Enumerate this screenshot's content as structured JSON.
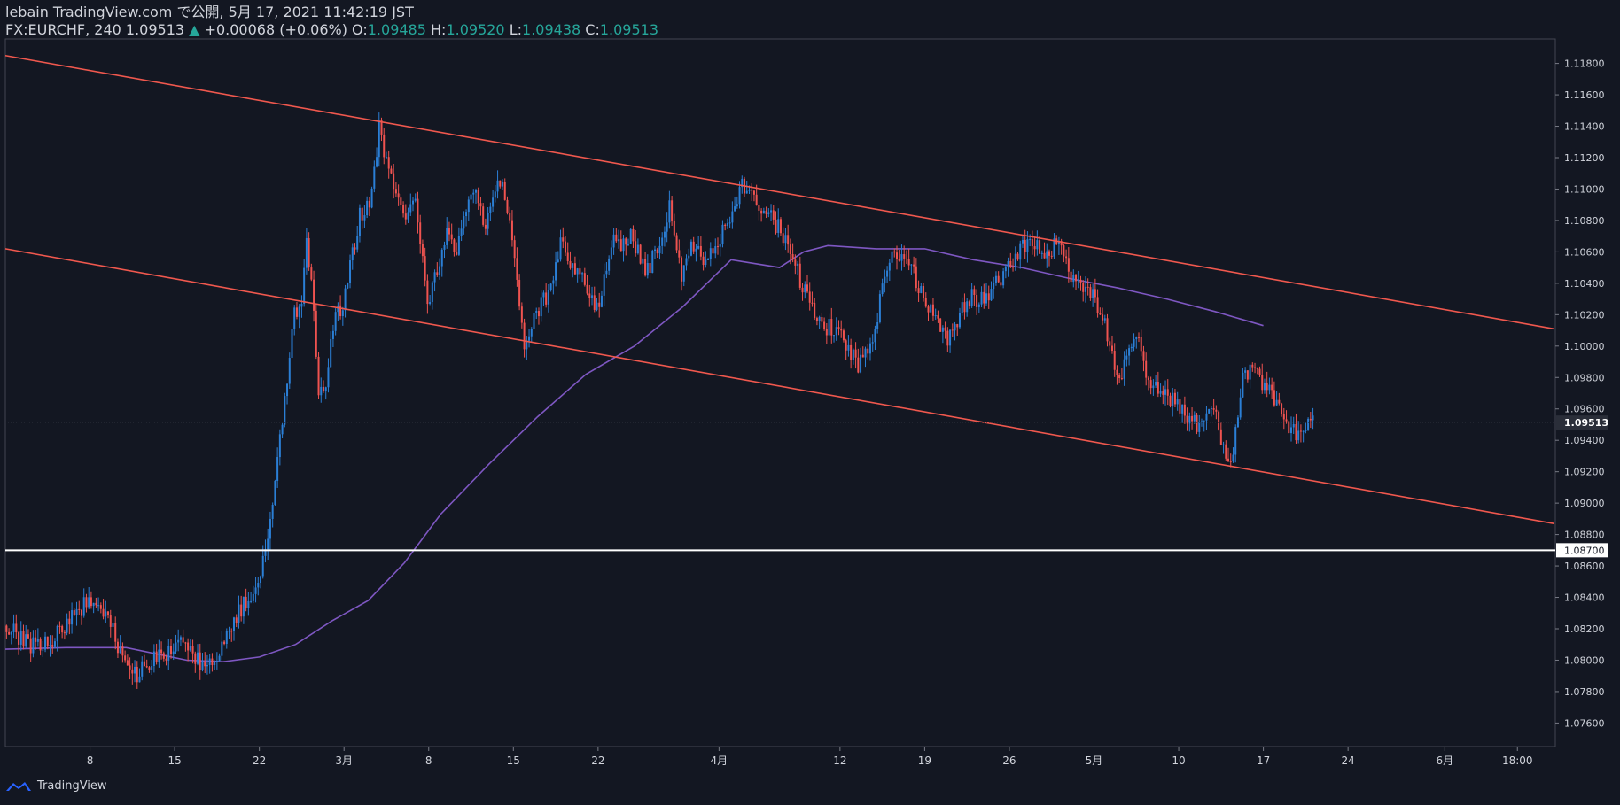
{
  "header": {
    "line1": "lebain TradingView.com で公開, 5月 17, 2021 11:42:19 JST",
    "symbol": "FX:EURCHF, 240",
    "last": "1.09513",
    "arrow": "▲",
    "change": "+0.00068 (+0.06%)",
    "o_label": "O:",
    "o": "1.09485",
    "h_label": "H:",
    "h": "1.09520",
    "l_label": "L:",
    "l": "1.09438",
    "c_label": "C:",
    "c": "1.09513"
  },
  "footer": {
    "brand": "TradingView"
  },
  "colors": {
    "background": "#131722",
    "up": "#2b7fd6",
    "down": "#ef5350",
    "trendline": "#f0584e",
    "moving_average": "#7e57c2",
    "level": "#ffffff",
    "axis_text": "#d1d4dc"
  },
  "chart_data": {
    "type": "candlestick",
    "symbol": "FX:EURCHF",
    "interval": "240",
    "yrange": [
      1.0745,
      1.1195
    ],
    "y_ticks": [
      "1.11800",
      "1.11600",
      "1.11400",
      "1.11200",
      "1.11000",
      "1.10800",
      "1.10600",
      "1.10400",
      "1.10200",
      "1.10000",
      "1.09800",
      "1.09600",
      "1.09400",
      "1.09200",
      "1.09000",
      "1.08800",
      "1.08600",
      "1.08400",
      "1.08200",
      "1.08000",
      "1.07800",
      "1.07600"
    ],
    "x_ticks": [
      {
        "label": "8",
        "day": 7
      },
      {
        "label": "15",
        "day": 14
      },
      {
        "label": "22",
        "day": 21
      },
      {
        "label": "3月",
        "day": 28
      },
      {
        "label": "8",
        "day": 35
      },
      {
        "label": "15",
        "day": 42
      },
      {
        "label": "22",
        "day": 49
      },
      {
        "label": "4月",
        "day": 59
      },
      {
        "label": "12",
        "day": 69
      },
      {
        "label": "19",
        "day": 76
      },
      {
        "label": "26",
        "day": 83
      },
      {
        "label": "5月",
        "day": 90
      },
      {
        "label": "10",
        "day": 97
      },
      {
        "label": "17",
        "day": 104
      },
      {
        "label": "24",
        "day": 111
      },
      {
        "label": "6月",
        "day": 119
      },
      {
        "label": "18:00",
        "day": 125
      }
    ],
    "last_price_label": "1.09513",
    "horizontal_level": {
      "price": 1.087,
      "label": "1.08700"
    },
    "trendlines": [
      {
        "name": "channel-upper",
        "from": [
          0,
          1.1185
        ],
        "to": [
          128,
          1.1011
        ]
      },
      {
        "name": "channel-lower",
        "from": [
          0,
          1.1062
        ],
        "to": [
          128,
          1.0887
        ]
      }
    ],
    "moving_average": [
      [
        0,
        1.0807
      ],
      [
        5,
        1.0808
      ],
      [
        10,
        1.0808
      ],
      [
        15,
        1.08
      ],
      [
        18,
        1.0799
      ],
      [
        21,
        1.0802
      ],
      [
        24,
        1.081
      ],
      [
        27,
        1.0825
      ],
      [
        30,
        1.0838
      ],
      [
        33,
        1.0862
      ],
      [
        36,
        1.0893
      ],
      [
        40,
        1.0925
      ],
      [
        44,
        1.0955
      ],
      [
        48,
        1.0982
      ],
      [
        52,
        1.1
      ],
      [
        56,
        1.1025
      ],
      [
        60,
        1.1055
      ],
      [
        64,
        1.105
      ],
      [
        66,
        1.106
      ],
      [
        68,
        1.1064
      ],
      [
        72,
        1.1062
      ],
      [
        76,
        1.1062
      ],
      [
        80,
        1.1055
      ],
      [
        84,
        1.105
      ],
      [
        88,
        1.1043
      ],
      [
        92,
        1.1037
      ],
      [
        96,
        1.103
      ],
      [
        100,
        1.1022
      ],
      [
        104,
        1.1013
      ]
    ],
    "price_path": [
      [
        0,
        1.0822
      ],
      [
        2,
        1.081
      ],
      [
        4,
        1.0812
      ],
      [
        6,
        1.0832
      ],
      [
        7.5,
        1.0838
      ],
      [
        9,
        1.0818
      ],
      [
        10.5,
        1.0788
      ],
      [
        12,
        1.0798
      ],
      [
        13.5,
        1.0805
      ],
      [
        15,
        1.0812
      ],
      [
        16.5,
        1.0793
      ],
      [
        18,
        1.0808
      ],
      [
        19.5,
        1.0832
      ],
      [
        21,
        1.085
      ],
      [
        21.5,
        1.0868
      ],
      [
        22,
        1.0888
      ],
      [
        22.5,
        1.092
      ],
      [
        23.3,
        1.0975
      ],
      [
        24,
        1.102
      ],
      [
        24.6,
        1.1028
      ],
      [
        25,
        1.107
      ],
      [
        25.6,
        1.102
      ],
      [
        26,
        1.0965
      ],
      [
        26.6,
        1.0978
      ],
      [
        27.2,
        1.1015
      ],
      [
        28,
        1.1025
      ],
      [
        28.6,
        1.105
      ],
      [
        29.4,
        1.1082
      ],
      [
        30.3,
        1.1095
      ],
      [
        31,
        1.1138
      ],
      [
        32,
        1.1105
      ],
      [
        33,
        1.1082
      ],
      [
        34,
        1.1095
      ],
      [
        35,
        1.103
      ],
      [
        35.6,
        1.1042
      ],
      [
        36.5,
        1.1072
      ],
      [
        37.3,
        1.1058
      ],
      [
        38.2,
        1.1085
      ],
      [
        39,
        1.1102
      ],
      [
        39.8,
        1.1075
      ],
      [
        40.5,
        1.11
      ],
      [
        41.3,
        1.1102
      ],
      [
        42,
        1.1065
      ],
      [
        43,
        1.1002
      ],
      [
        44,
        1.102
      ],
      [
        45,
        1.1035
      ],
      [
        46,
        1.1065
      ],
      [
        47,
        1.105
      ],
      [
        48,
        1.1042
      ],
      [
        49,
        1.1022
      ],
      [
        49.6,
        1.104
      ],
      [
        50.3,
        1.1072
      ],
      [
        51,
        1.1065
      ],
      [
        52,
        1.107
      ],
      [
        53,
        1.1045
      ],
      [
        54,
        1.1062
      ],
      [
        55,
        1.1088
      ],
      [
        56,
        1.1045
      ],
      [
        57,
        1.1065
      ],
      [
        58,
        1.105
      ],
      [
        59,
        1.1068
      ],
      [
        60,
        1.108
      ],
      [
        61,
        1.1105
      ],
      [
        62,
        1.1092
      ],
      [
        63,
        1.1085
      ],
      [
        64,
        1.1075
      ],
      [
        65,
        1.106
      ],
      [
        66,
        1.1038
      ],
      [
        67,
        1.102
      ],
      [
        68,
        1.1012
      ],
      [
        69,
        1.101
      ],
      [
        70,
        1.0996
      ],
      [
        70.6,
        1.0985
      ],
      [
        71.3,
        1.0998
      ],
      [
        72,
        1.1005
      ],
      [
        72.6,
        1.1042
      ],
      [
        73.3,
        1.1055
      ],
      [
        74,
        1.106
      ],
      [
        75,
        1.105
      ],
      [
        76,
        1.103
      ],
      [
        77,
        1.1015
      ],
      [
        78,
        1.1005
      ],
      [
        79,
        1.102
      ],
      [
        80,
        1.1032
      ],
      [
        81,
        1.1028
      ],
      [
        82,
        1.104
      ],
      [
        83,
        1.105
      ],
      [
        84,
        1.1062
      ],
      [
        85,
        1.1068
      ],
      [
        86,
        1.1055
      ],
      [
        87,
        1.1065
      ],
      [
        88,
        1.1048
      ],
      [
        89,
        1.104
      ],
      [
        90,
        1.1032
      ],
      [
        91,
        1.1015
      ],
      [
        91.6,
        1.0995
      ],
      [
        92.2,
        1.098
      ],
      [
        93,
        1.1
      ],
      [
        93.6,
        1.101
      ],
      [
        94.3,
        1.0985
      ],
      [
        95,
        1.0975
      ],
      [
        96,
        1.0968
      ],
      [
        97,
        1.0962
      ],
      [
        98,
        1.0955
      ],
      [
        99,
        1.0948
      ],
      [
        100,
        1.0958
      ],
      [
        101,
        1.093
      ],
      [
        101.6,
        1.0932
      ],
      [
        102.3,
        1.098
      ],
      [
        103,
        1.0985
      ],
      [
        104,
        1.0978
      ],
      [
        104.8,
        1.0972
      ],
      [
        105.6,
        1.0955
      ],
      [
        106.4,
        1.0945
      ],
      [
        107.3,
        1.0942
      ],
      [
        108,
        1.095
      ]
    ],
    "candle_start_day": 0,
    "candle_end_day": 108,
    "candle_step_days": 0.2
  }
}
